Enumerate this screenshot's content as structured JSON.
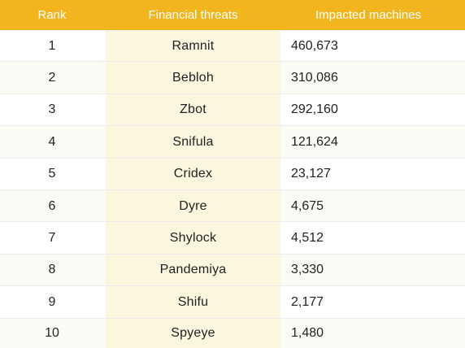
{
  "header": {
    "rank": "Rank",
    "threat": "Financial threats",
    "count": "Impacted machines"
  },
  "rows": [
    {
      "rank": "1",
      "threat": "Ramnit",
      "count": "460,673"
    },
    {
      "rank": "2",
      "threat": "Bebloh",
      "count": "310,086"
    },
    {
      "rank": "3",
      "threat": "Zbot",
      "count": "292,160"
    },
    {
      "rank": "4",
      "threat": "Snifula",
      "count": "121,624"
    },
    {
      "rank": "5",
      "threat": "Cridex",
      "count": "23,127"
    },
    {
      "rank": "6",
      "threat": "Dyre",
      "count": "4,675"
    },
    {
      "rank": "7",
      "threat": "Shylock",
      "count": "4,512"
    },
    {
      "rank": "8",
      "threat": "Pandemiya",
      "count": "3,330"
    },
    {
      "rank": "9",
      "threat": "Shifu",
      "count": "2,177"
    },
    {
      "rank": "10",
      "threat": "Spyeye",
      "count": "1,480"
    }
  ],
  "colors": {
    "header_bg": "#f2b51d",
    "header_text": "#ffffff",
    "threat_band": "#fdf6de"
  }
}
